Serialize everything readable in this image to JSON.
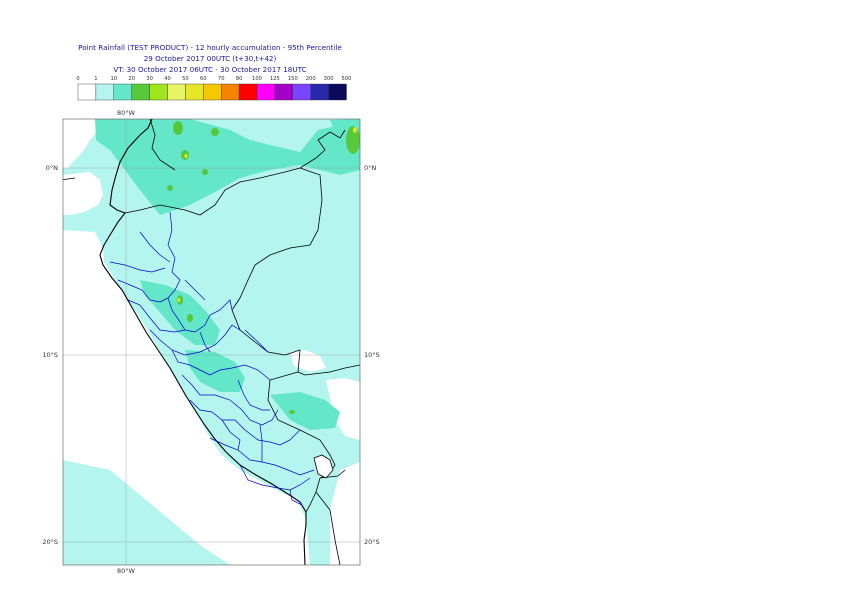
{
  "header": {
    "title": "Point Rainfall (TEST PRODUCT) - 12 hourly accumulation - 95th Percentile",
    "base_time": "29 October 2017 00UTC (t+30,t+42)",
    "valid_time": "VT: 30 October 2017 06UTC - 30 October 2017 18UTC"
  },
  "legend": {
    "thresholds": [
      "0",
      "1",
      "10",
      "20",
      "30",
      "40",
      "50",
      "60",
      "70",
      "80",
      "100",
      "125",
      "150",
      "200",
      "300",
      "500"
    ],
    "colors": [
      "#ffffff",
      "#b4f5f0",
      "#64e6c8",
      "#55c83c",
      "#a0e61e",
      "#e6f564",
      "#e6e628",
      "#f5c800",
      "#f58200",
      "#ff0000",
      "#ff00ff",
      "#a000c8",
      "#7846ff",
      "#2828aa",
      "#0a0a5a"
    ]
  },
  "map": {
    "lon_label_top": "80°W",
    "lon_label_bottom": "80°W",
    "lat_labels": [
      "0°N",
      "10°S",
      "20°S"
    ],
    "colors": {
      "land_light": "#b4f5f0",
      "rain_moderate": "#64e6c8",
      "rain_heavy": "#55c83c",
      "rain_yellow": "#e6e628",
      "coast": "#000000",
      "admin": "#0000cc",
      "grid": "#999999"
    }
  }
}
